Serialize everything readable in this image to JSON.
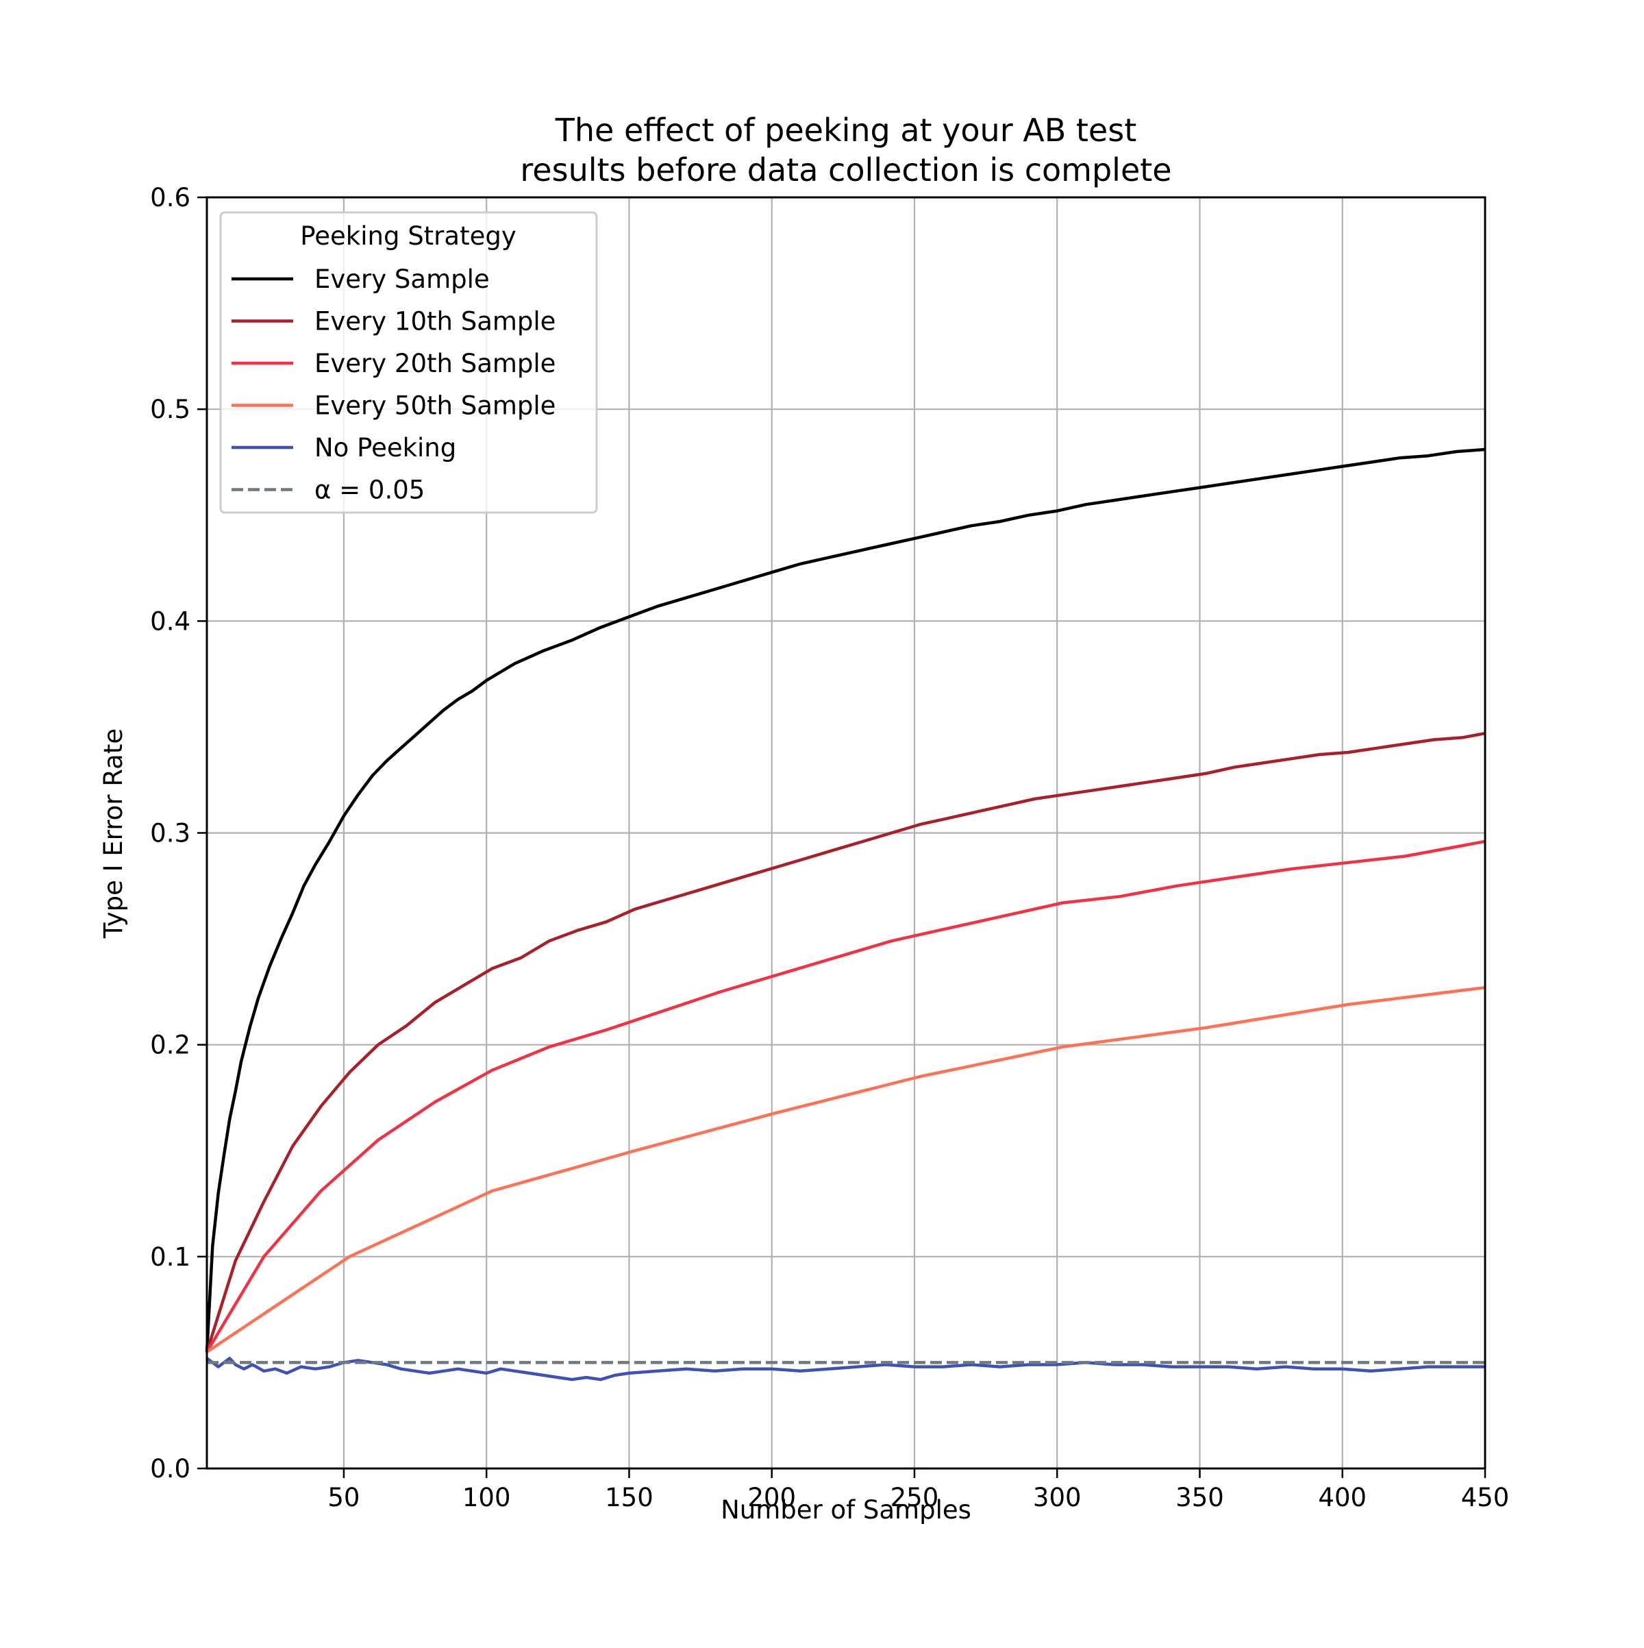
{
  "chart_data": {
    "type": "line",
    "title_lines": [
      "The effect of peeking at your AB test",
      "results before data collection is complete"
    ],
    "xlabel": "Number of Samples",
    "ylabel": "Type I Error Rate",
    "xlim": [
      2,
      450
    ],
    "ylim": [
      0.0,
      0.6
    ],
    "x_ticks": [
      50,
      100,
      150,
      200,
      250,
      300,
      350,
      400,
      450
    ],
    "y_ticks": [
      0.0,
      0.1,
      0.2,
      0.3,
      0.4,
      0.5,
      0.6
    ],
    "x_tick_labels": [
      "50",
      "100",
      "150",
      "200",
      "250",
      "300",
      "350",
      "400",
      "450"
    ],
    "y_tick_labels": [
      "0.0",
      "0.1",
      "0.2",
      "0.3",
      "0.4",
      "0.5",
      "0.6"
    ],
    "grid": true,
    "legend_title": "Peeking Strategy",
    "legend_position": "upper-left",
    "series": [
      {
        "name": "Every Sample",
        "color": "#000000",
        "dash": "solid",
        "points": [
          [
            2,
            0.055
          ],
          [
            4,
            0.105
          ],
          [
            6,
            0.13
          ],
          [
            8,
            0.148
          ],
          [
            10,
            0.165
          ],
          [
            12,
            0.178
          ],
          [
            14,
            0.192
          ],
          [
            17,
            0.208
          ],
          [
            20,
            0.222
          ],
          [
            24,
            0.237
          ],
          [
            28,
            0.25
          ],
          [
            32,
            0.262
          ],
          [
            36,
            0.275
          ],
          [
            40,
            0.285
          ],
          [
            45,
            0.296
          ],
          [
            50,
            0.308
          ],
          [
            55,
            0.318
          ],
          [
            60,
            0.327
          ],
          [
            65,
            0.334
          ],
          [
            70,
            0.34
          ],
          [
            75,
            0.346
          ],
          [
            80,
            0.352
          ],
          [
            85,
            0.358
          ],
          [
            90,
            0.363
          ],
          [
            95,
            0.367
          ],
          [
            100,
            0.372
          ],
          [
            105,
            0.376
          ],
          [
            110,
            0.38
          ],
          [
            115,
            0.383
          ],
          [
            120,
            0.386
          ],
          [
            130,
            0.391
          ],
          [
            140,
            0.397
          ],
          [
            150,
            0.402
          ],
          [
            160,
            0.407
          ],
          [
            170,
            0.411
          ],
          [
            180,
            0.415
          ],
          [
            190,
            0.419
          ],
          [
            200,
            0.423
          ],
          [
            210,
            0.427
          ],
          [
            220,
            0.43
          ],
          [
            230,
            0.433
          ],
          [
            240,
            0.436
          ],
          [
            250,
            0.439
          ],
          [
            260,
            0.442
          ],
          [
            270,
            0.445
          ],
          [
            280,
            0.447
          ],
          [
            290,
            0.45
          ],
          [
            300,
            0.452
          ],
          [
            310,
            0.455
          ],
          [
            320,
            0.457
          ],
          [
            330,
            0.459
          ],
          [
            340,
            0.461
          ],
          [
            350,
            0.463
          ],
          [
            360,
            0.465
          ],
          [
            370,
            0.467
          ],
          [
            380,
            0.469
          ],
          [
            390,
            0.471
          ],
          [
            400,
            0.473
          ],
          [
            410,
            0.475
          ],
          [
            420,
            0.477
          ],
          [
            430,
            0.478
          ],
          [
            440,
            0.48
          ],
          [
            450,
            0.481
          ]
        ]
      },
      {
        "name": "Every 10th Sample",
        "color": "#a8202a",
        "dash": "solid",
        "points": [
          [
            2,
            0.055
          ],
          [
            12,
            0.098
          ],
          [
            22,
            0.126
          ],
          [
            32,
            0.152
          ],
          [
            42,
            0.171
          ],
          [
            52,
            0.187
          ],
          [
            62,
            0.2
          ],
          [
            72,
            0.209
          ],
          [
            82,
            0.22
          ],
          [
            92,
            0.228
          ],
          [
            102,
            0.236
          ],
          [
            112,
            0.241
          ],
          [
            122,
            0.249
          ],
          [
            132,
            0.254
          ],
          [
            142,
            0.258
          ],
          [
            152,
            0.264
          ],
          [
            162,
            0.268
          ],
          [
            172,
            0.272
          ],
          [
            182,
            0.276
          ],
          [
            192,
            0.28
          ],
          [
            202,
            0.284
          ],
          [
            212,
            0.288
          ],
          [
            222,
            0.292
          ],
          [
            232,
            0.296
          ],
          [
            242,
            0.3
          ],
          [
            252,
            0.304
          ],
          [
            262,
            0.307
          ],
          [
            272,
            0.31
          ],
          [
            282,
            0.313
          ],
          [
            292,
            0.316
          ],
          [
            302,
            0.318
          ],
          [
            312,
            0.32
          ],
          [
            322,
            0.322
          ],
          [
            332,
            0.324
          ],
          [
            342,
            0.326
          ],
          [
            352,
            0.328
          ],
          [
            362,
            0.331
          ],
          [
            372,
            0.333
          ],
          [
            382,
            0.335
          ],
          [
            392,
            0.337
          ],
          [
            402,
            0.338
          ],
          [
            412,
            0.34
          ],
          [
            422,
            0.342
          ],
          [
            432,
            0.344
          ],
          [
            442,
            0.345
          ],
          [
            450,
            0.347
          ]
        ]
      },
      {
        "name": "Every 20th Sample",
        "color": "#ee3444",
        "dash": "solid",
        "points": [
          [
            2,
            0.055
          ],
          [
            22,
            0.1
          ],
          [
            42,
            0.131
          ],
          [
            62,
            0.155
          ],
          [
            82,
            0.173
          ],
          [
            102,
            0.188
          ],
          [
            122,
            0.199
          ],
          [
            142,
            0.207
          ],
          [
            162,
            0.216
          ],
          [
            182,
            0.225
          ],
          [
            202,
            0.233
          ],
          [
            222,
            0.241
          ],
          [
            242,
            0.249
          ],
          [
            262,
            0.255
          ],
          [
            282,
            0.261
          ],
          [
            302,
            0.267
          ],
          [
            322,
            0.27
          ],
          [
            342,
            0.275
          ],
          [
            362,
            0.279
          ],
          [
            382,
            0.283
          ],
          [
            402,
            0.286
          ],
          [
            422,
            0.289
          ],
          [
            442,
            0.294
          ],
          [
            450,
            0.296
          ]
        ]
      },
      {
        "name": "Every 50th Sample",
        "color": "#fb7257",
        "dash": "solid",
        "points": [
          [
            2,
            0.055
          ],
          [
            52,
            0.1
          ],
          [
            102,
            0.131
          ],
          [
            152,
            0.15
          ],
          [
            202,
            0.168
          ],
          [
            252,
            0.185
          ],
          [
            302,
            0.199
          ],
          [
            352,
            0.208
          ],
          [
            402,
            0.219
          ],
          [
            450,
            0.227
          ]
        ]
      },
      {
        "name": "No Peeking",
        "color": "#3f51b5",
        "dash": "solid",
        "points": [
          [
            2,
            0.052
          ],
          [
            4,
            0.05
          ],
          [
            6,
            0.048
          ],
          [
            8,
            0.05
          ],
          [
            10,
            0.052
          ],
          [
            12,
            0.049
          ],
          [
            15,
            0.047
          ],
          [
            18,
            0.049
          ],
          [
            22,
            0.046
          ],
          [
            26,
            0.047
          ],
          [
            30,
            0.045
          ],
          [
            35,
            0.048
          ],
          [
            40,
            0.047
          ],
          [
            45,
            0.048
          ],
          [
            50,
            0.05
          ],
          [
            55,
            0.051
          ],
          [
            60,
            0.05
          ],
          [
            65,
            0.049
          ],
          [
            70,
            0.047
          ],
          [
            75,
            0.046
          ],
          [
            80,
            0.045
          ],
          [
            85,
            0.046
          ],
          [
            90,
            0.047
          ],
          [
            95,
            0.046
          ],
          [
            100,
            0.045
          ],
          [
            105,
            0.047
          ],
          [
            110,
            0.046
          ],
          [
            115,
            0.045
          ],
          [
            120,
            0.044
          ],
          [
            125,
            0.043
          ],
          [
            130,
            0.042
          ],
          [
            135,
            0.043
          ],
          [
            140,
            0.042
          ],
          [
            145,
            0.044
          ],
          [
            150,
            0.045
          ],
          [
            160,
            0.046
          ],
          [
            170,
            0.047
          ],
          [
            180,
            0.046
          ],
          [
            190,
            0.047
          ],
          [
            200,
            0.047
          ],
          [
            210,
            0.046
          ],
          [
            220,
            0.047
          ],
          [
            230,
            0.048
          ],
          [
            240,
            0.049
          ],
          [
            250,
            0.048
          ],
          [
            260,
            0.048
          ],
          [
            270,
            0.049
          ],
          [
            280,
            0.048
          ],
          [
            290,
            0.049
          ],
          [
            300,
            0.049
          ],
          [
            310,
            0.05
          ],
          [
            320,
            0.049
          ],
          [
            330,
            0.049
          ],
          [
            340,
            0.048
          ],
          [
            350,
            0.048
          ],
          [
            360,
            0.048
          ],
          [
            370,
            0.047
          ],
          [
            380,
            0.048
          ],
          [
            390,
            0.047
          ],
          [
            400,
            0.047
          ],
          [
            410,
            0.046
          ],
          [
            420,
            0.047
          ],
          [
            430,
            0.048
          ],
          [
            440,
            0.048
          ],
          [
            450,
            0.048
          ]
        ]
      },
      {
        "name": "α = 0.05",
        "color": "#6e7a80",
        "dash": "dashed",
        "points": [
          [
            2,
            0.05
          ],
          [
            450,
            0.05
          ]
        ]
      }
    ]
  }
}
